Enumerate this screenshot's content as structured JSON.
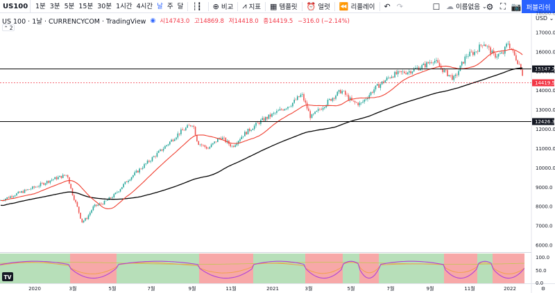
{
  "toolbar": {
    "symbol": "US100",
    "timeframes": [
      "1분",
      "3분",
      "5분",
      "15분",
      "30분",
      "1시간",
      "4시간",
      "날",
      "주",
      "달"
    ],
    "active_timeframe": "날",
    "compare_label": "비교",
    "indicators_label": "지표",
    "templates_label": "템플릿",
    "alert_label": "얼럿",
    "replay_label": "리플레이",
    "unnamed_label": "이름없음",
    "publish_label": "퍼블리쉬"
  },
  "legend": {
    "title": "US 100 · 1날 · CURRENCYCOM · TradingView",
    "open": "시14743.0",
    "high": "고14869.8",
    "low": "저14418.0",
    "close": "종14419.5",
    "change": "−316.0 (−2.14%)",
    "collapse_label": "2"
  },
  "price_axis": {
    "currency": "USD",
    "ticks": [
      "18000.0",
      "17000.0",
      "16000.0",
      "15000.0",
      "14000.0",
      "13000.0",
      "12000.0",
      "11000.0",
      "10000.0",
      "9000.0",
      "8000.0",
      "7000.0",
      "6000.0"
    ],
    "hline_upper_label": "15147.2",
    "hline_lower_label": "12426.3",
    "last_price_label": "14419.5",
    "colors": {
      "line": "#000000",
      "last_price": "#f23645"
    }
  },
  "oscillator_axis": {
    "ticks": [
      "100.0",
      "50.0",
      "0.0"
    ]
  },
  "time_axis": {
    "ticks": [
      "2020",
      "3월",
      "5월",
      "7월",
      "9월",
      "11월",
      "2021",
      "3월",
      "5월",
      "7월",
      "9월",
      "11월",
      "2022"
    ]
  },
  "colors": {
    "up": "#26a69a",
    "down": "#ef5350",
    "ma_short": "#ef3b2c",
    "ma_long": "#000000",
    "zone_green": "#b7dfb9",
    "zone_red": "#f7a8a8",
    "osc_purple": "#b040d8",
    "osc_orange": "#f0a04b",
    "osc_yellow": "#c8c35a"
  },
  "logo_text": "TV"
}
